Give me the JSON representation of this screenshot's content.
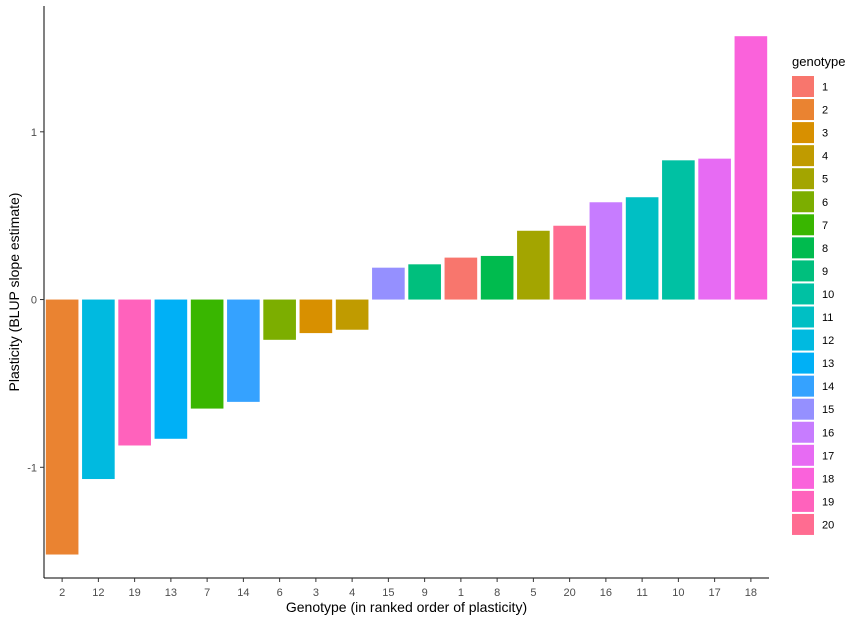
{
  "chart_data": {
    "type": "bar",
    "title": "",
    "xlabel": "Genotype (in ranked order of plasticity)",
    "ylabel": "Plasticity (BLUP slope estimate)",
    "ylim": [
      -1.66,
      1.75
    ],
    "yticks": [
      -1,
      0,
      1
    ],
    "grid": false,
    "legend_position": "right",
    "categories": [
      "2",
      "12",
      "19",
      "13",
      "7",
      "14",
      "6",
      "3",
      "4",
      "15",
      "9",
      "1",
      "8",
      "5",
      "20",
      "16",
      "11",
      "10",
      "17",
      "18"
    ],
    "values": [
      -1.52,
      -1.07,
      -0.87,
      -0.83,
      -0.65,
      -0.61,
      -0.24,
      -0.2,
      -0.18,
      0.19,
      0.21,
      0.25,
      0.26,
      0.41,
      0.44,
      0.58,
      0.61,
      0.83,
      0.84,
      1.57
    ],
    "legend": {
      "title": "genotype",
      "entries": [
        "1",
        "2",
        "3",
        "4",
        "5",
        "6",
        "7",
        "8",
        "9",
        "10",
        "11",
        "12",
        "13",
        "14",
        "15",
        "16",
        "17",
        "18",
        "19",
        "20"
      ],
      "colors": [
        "#F8766D",
        "#EA8331",
        "#D89000",
        "#C09B00",
        "#A3A500",
        "#7CAE00",
        "#39B600",
        "#00BB4E",
        "#00BF7D",
        "#00C1A3",
        "#00BFC4",
        "#00BAE0",
        "#00B0F6",
        "#35A2FF",
        "#9590FF",
        "#C77CFF",
        "#E76BF3",
        "#FA62DB",
        "#FF62BC",
        "#FF6C91"
      ]
    }
  }
}
